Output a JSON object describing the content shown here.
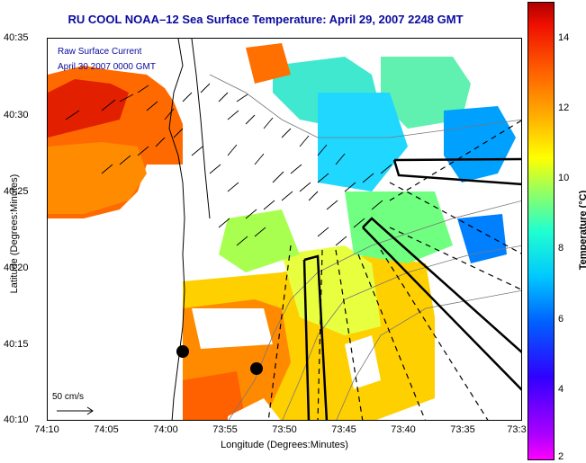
{
  "title": "RU COOL  NOAA–12  Sea Surface Temperature:  April 29, 2007 2248 GMT",
  "legend": {
    "line1": "Raw Surface Current",
    "line2": "April 30 2007 0000 GMT"
  },
  "scale_label": "50 cm/s",
  "x_axis": {
    "label": "Longitude (Degrees:Minutes)",
    "ticks": [
      "74:10",
      "74:05",
      "74:00",
      "73:55",
      "73:50",
      "73:45",
      "73:40",
      "73:35",
      "73:3"
    ]
  },
  "y_axis": {
    "label": "Latitude (Degrees:Minutes)",
    "ticks": [
      "40:35",
      "40:30",
      "40:25",
      "40:20",
      "40:15",
      "40:10"
    ]
  },
  "colorbar": {
    "label": "Temperature (°C)",
    "ticks": [
      "14",
      "12",
      "10",
      "8",
      "6",
      "4",
      "2"
    ],
    "range": [
      2,
      15
    ]
  }
}
